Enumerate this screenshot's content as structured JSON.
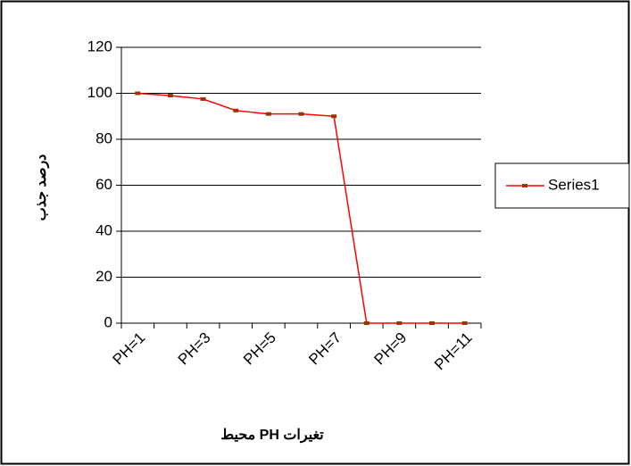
{
  "chart_data": {
    "type": "line",
    "x_label": "تغیرات PH  محیط",
    "y_label": "درصد جذب",
    "categories": [
      "PH=1",
      null,
      "PH=3",
      null,
      "PH=5",
      null,
      "PH=7",
      null,
      "PH=9",
      null,
      "PH=11"
    ],
    "series": [
      {
        "name": "Series1",
        "color": "#ff0000",
        "marker_color": "#993300",
        "values": [
          100,
          99,
          97.5,
          92.5,
          91,
          91,
          90,
          0,
          0,
          0,
          0
        ]
      }
    ],
    "ylim": [
      0,
      120
    ],
    "yticks": [
      0,
      20,
      40,
      60,
      80,
      100,
      120
    ],
    "grid": true,
    "legend": "right"
  }
}
